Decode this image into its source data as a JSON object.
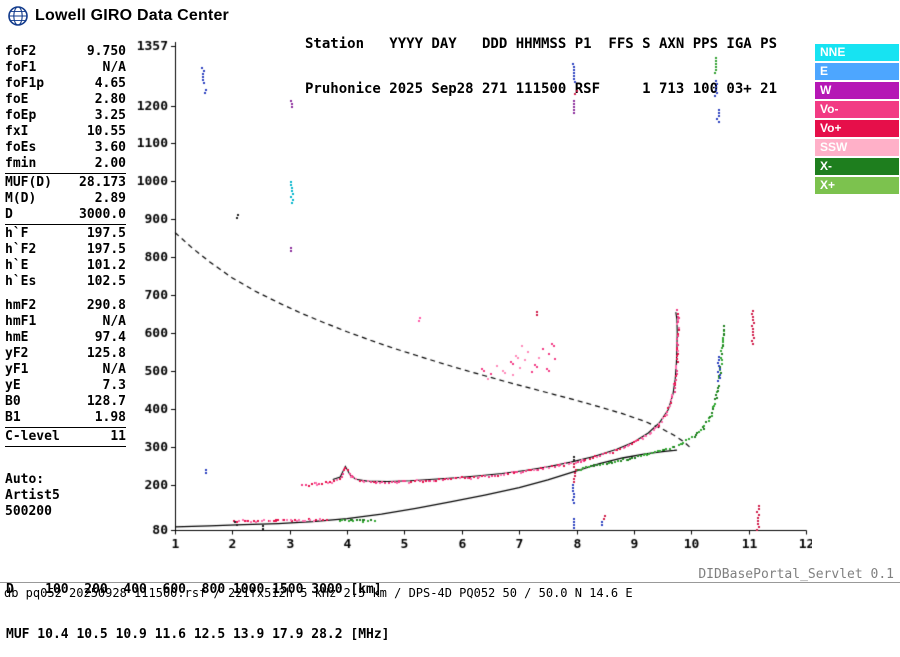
{
  "logo": {
    "text": "Lowell GIRO Data Center"
  },
  "header": {
    "line1": "Station   YYYY DAY   DDD HHMMSS P1  FFS S AXN PPS IGA PS",
    "line2": "Pruhonice 2025 Sep28 271 111500 RSF     1 713 100 03+ 21"
  },
  "params": {
    "rows": [
      {
        "n": "foF2",
        "v": "9.750"
      },
      {
        "n": "foF1",
        "v": "N/A"
      },
      {
        "n": "foF1p",
        "v": "4.65"
      },
      {
        "n": "foE",
        "v": "2.80"
      },
      {
        "n": "foEp",
        "v": "3.25"
      },
      {
        "n": "fxI",
        "v": "10.55"
      },
      {
        "n": "foEs",
        "v": "3.60"
      },
      {
        "n": "fmin",
        "v": "2.00"
      },
      {
        "hr": true
      },
      {
        "n": "MUF(D)",
        "v": "28.173"
      },
      {
        "n": "M(D)",
        "v": "2.89"
      },
      {
        "n": "D",
        "v": "3000.0"
      },
      {
        "hr": true
      },
      {
        "n": "h`F",
        "v": "197.5"
      },
      {
        "n": "h`F2",
        "v": "197.5"
      },
      {
        "n": "h`E",
        "v": "101.2"
      },
      {
        "n": "h`Es",
        "v": "102.5"
      },
      {
        "gap": "sm"
      },
      {
        "n": "hmF2",
        "v": "290.8"
      },
      {
        "n": "hmF1",
        "v": "N/A"
      },
      {
        "n": "hmE",
        "v": "97.4"
      },
      {
        "n": "yF2",
        "v": "125.8"
      },
      {
        "n": "yF1",
        "v": "N/A"
      },
      {
        "n": "yE",
        "v": "7.3"
      },
      {
        "n": "B0",
        "v": "128.7"
      },
      {
        "n": "B1",
        "v": "1.98"
      },
      {
        "hr": true
      },
      {
        "n": "C-level",
        "v": "11"
      },
      {
        "hr": true
      },
      {
        "gap": "lg"
      },
      {
        "n": "Auto:",
        "v": ""
      },
      {
        "n": "Artist5",
        "v": ""
      },
      {
        "n": "500200",
        "v": ""
      }
    ]
  },
  "legend": {
    "items": [
      {
        "label": "NNE",
        "color": "#17E3F2"
      },
      {
        "label": "E",
        "color": "#4DA6FF"
      },
      {
        "label": "W",
        "color": "#B517B5"
      },
      {
        "label": "Vo-",
        "color": "#F23B84"
      },
      {
        "label": "Vo+",
        "color": "#E60F4A"
      },
      {
        "label": "SSW",
        "color": "#FFB0C8"
      },
      {
        "label": "X-",
        "color": "#1E7E1E"
      },
      {
        "label": "X+",
        "color": "#7CC24E"
      }
    ]
  },
  "footer": {
    "d_row": "D    100  200  400  600  800 1000 1500 3000 [km]",
    "muf_row": "MUF 10.4 10.5 10.9 11.6 12.5 13.9 17.9 28.2 [MHz]",
    "servlet": "DIDBasePortal_Servlet 0.1",
    "status": "db pq052 20250928 111500.rsf / 221fx512h 5 kHz 2.5 km / DPS-4D PQ052 50 / 50.0 N 14.6 E"
  },
  "chart_data": {
    "type": "scatter",
    "description": "Digisonde ionogram: virtual height (km) vs sounding frequency (MHz)",
    "x_axis": {
      "label": "[MHz]",
      "min": 1,
      "max": 12,
      "ticks": [
        1,
        2,
        3,
        4,
        5,
        6,
        7,
        8,
        9,
        10,
        11,
        12
      ]
    },
    "y_axis": {
      "label": "[km]",
      "min": 80,
      "max": 1357,
      "ticks": [
        1357,
        1200,
        1100,
        1000,
        900,
        800,
        700,
        600,
        500,
        400,
        300,
        200,
        80
      ]
    },
    "muf_table": {
      "D_km": [
        100,
        200,
        400,
        600,
        800,
        1000,
        1500,
        3000
      ],
      "MUF_MHz": [
        10.4,
        10.5,
        10.9,
        11.6,
        12.5,
        13.9,
        17.9,
        28.2
      ]
    },
    "traces": [
      {
        "name": "transmission-curve-D3000",
        "style": "dashed",
        "color": "#000000",
        "width": 1.2,
        "points": [
          [
            1.0,
            865
          ],
          [
            1.3,
            824
          ],
          [
            1.6,
            788
          ],
          [
            2.0,
            745
          ],
          [
            2.4,
            710
          ],
          [
            2.8,
            680
          ],
          [
            3.2,
            652
          ],
          [
            3.6,
            627
          ],
          [
            4.0,
            603
          ],
          [
            4.4,
            581
          ],
          [
            4.8,
            560
          ],
          [
            5.2,
            541
          ],
          [
            5.6,
            522
          ],
          [
            6.0,
            504
          ],
          [
            6.4,
            487
          ],
          [
            6.8,
            470
          ],
          [
            7.2,
            454
          ],
          [
            7.6,
            438
          ],
          [
            8.0,
            422
          ],
          [
            8.4,
            405
          ],
          [
            8.8,
            387
          ],
          [
            9.2,
            366
          ],
          [
            9.5,
            346
          ],
          [
            9.7,
            330
          ],
          [
            9.85,
            315
          ],
          [
            9.95,
            302
          ],
          [
            10.0,
            295
          ]
        ]
      },
      {
        "name": "true-height-profile",
        "style": "solid",
        "color": "#000000",
        "width": 1.3,
        "points": [
          [
            1.0,
            88
          ],
          [
            1.6,
            91
          ],
          [
            2.2,
            94
          ],
          [
            2.8,
            97
          ],
          [
            3.4,
            102
          ],
          [
            4.0,
            110
          ],
          [
            4.6,
            122
          ],
          [
            5.2,
            137
          ],
          [
            5.8,
            154
          ],
          [
            6.4,
            172
          ],
          [
            7.0,
            192
          ],
          [
            7.5,
            212
          ],
          [
            8.0,
            236
          ],
          [
            8.4,
            255
          ],
          [
            8.8,
            270
          ],
          [
            9.2,
            281
          ],
          [
            9.5,
            287
          ],
          [
            9.7,
            290
          ],
          [
            9.75,
            291
          ]
        ]
      },
      {
        "name": "fitted-o-trace",
        "style": "solid",
        "color": "#000000",
        "width": 1.1,
        "points": [
          [
            3.75,
            213
          ],
          [
            3.88,
            220
          ],
          [
            3.97,
            248
          ],
          [
            4.05,
            226
          ],
          [
            4.15,
            214
          ],
          [
            4.35,
            209
          ],
          [
            4.7,
            208
          ],
          [
            5.1,
            210
          ],
          [
            5.5,
            214
          ],
          [
            5.9,
            218
          ],
          [
            6.3,
            223
          ],
          [
            6.7,
            229
          ],
          [
            7.1,
            237
          ],
          [
            7.5,
            247
          ],
          [
            7.9,
            259
          ],
          [
            8.3,
            274
          ],
          [
            8.7,
            293
          ],
          [
            9.0,
            312
          ],
          [
            9.25,
            336
          ],
          [
            9.45,
            364
          ],
          [
            9.6,
            398
          ],
          [
            9.68,
            438
          ],
          [
            9.72,
            478
          ],
          [
            9.74,
            520
          ],
          [
            9.75,
            560
          ],
          [
            9.755,
            600
          ],
          [
            9.75,
            635
          ],
          [
            9.73,
            655
          ]
        ]
      },
      {
        "name": "o-mode-f-trace",
        "style": "dots",
        "colors": [
          "#E60F4A",
          "#F23B84",
          "#FF6FAE"
        ],
        "points": [
          [
            3.2,
            201
          ],
          [
            3.45,
            204
          ],
          [
            3.7,
            208
          ],
          [
            3.85,
            216
          ],
          [
            3.95,
            246
          ],
          [
            4.05,
            224
          ],
          [
            4.2,
            211
          ],
          [
            4.5,
            208
          ],
          [
            4.9,
            209
          ],
          [
            5.3,
            212
          ],
          [
            5.7,
            216
          ],
          [
            6.1,
            220
          ],
          [
            6.5,
            226
          ],
          [
            6.9,
            233
          ],
          [
            7.3,
            242
          ],
          [
            7.7,
            253
          ],
          [
            8.1,
            266
          ],
          [
            8.5,
            283
          ],
          [
            8.9,
            305
          ],
          [
            9.2,
            330
          ],
          [
            9.4,
            356
          ],
          [
            9.55,
            388
          ],
          [
            9.64,
            424
          ],
          [
            9.7,
            466
          ],
          [
            9.73,
            510
          ],
          [
            9.745,
            556
          ],
          [
            9.75,
            600
          ],
          [
            9.755,
            640
          ],
          [
            9.75,
            660
          ]
        ]
      },
      {
        "name": "x-mode-f-trace",
        "style": "dots",
        "colors": [
          "#1E7E1E",
          "#33A833"
        ],
        "points": [
          [
            8.0,
            242
          ],
          [
            8.3,
            251
          ],
          [
            8.6,
            260
          ],
          [
            8.9,
            270
          ],
          [
            9.2,
            281
          ],
          [
            9.5,
            294
          ],
          [
            9.8,
            310
          ],
          [
            10.05,
            330
          ],
          [
            10.2,
            352
          ],
          [
            10.3,
            378
          ],
          [
            10.38,
            410
          ],
          [
            10.44,
            448
          ],
          [
            10.48,
            490
          ],
          [
            10.51,
            530
          ],
          [
            10.53,
            570
          ],
          [
            10.545,
            600
          ],
          [
            10.55,
            620
          ]
        ]
      },
      {
        "name": "es-o-trace",
        "style": "dots",
        "colors": [
          "#E60F4A",
          "#FF6FAE"
        ],
        "points": [
          [
            2.0,
            105
          ],
          [
            2.25,
            106
          ],
          [
            2.5,
            106
          ],
          [
            2.75,
            107
          ],
          [
            3.0,
            108
          ],
          [
            3.25,
            109
          ],
          [
            3.5,
            110
          ],
          [
            3.62,
            110
          ]
        ]
      },
      {
        "name": "es-x-trace",
        "style": "dots",
        "colors": [
          "#1E7E1E",
          "#33A833"
        ],
        "points": [
          [
            3.85,
            106
          ],
          [
            4.05,
            107
          ],
          [
            4.25,
            107
          ],
          [
            4.45,
            108
          ]
        ]
      }
    ],
    "scatter": {
      "name": "spread-f-echoes",
      "colors": [
        "#F23B84",
        "#FF8AB8"
      ],
      "points": [
        [
          6.35,
          505
        ],
        [
          6.45,
          478
        ],
        [
          6.5,
          492
        ],
        [
          6.62,
          514
        ],
        [
          6.72,
          500
        ],
        [
          6.85,
          522
        ],
        [
          6.9,
          488
        ],
        [
          6.95,
          540
        ],
        [
          7.02,
          508
        ],
        [
          7.05,
          565
        ],
        [
          7.1,
          528
        ],
        [
          7.15,
          550
        ],
        [
          7.22,
          498
        ],
        [
          7.28,
          515
        ],
        [
          7.35,
          535
        ],
        [
          7.42,
          558
        ],
        [
          7.48,
          505
        ],
        [
          7.52,
          545
        ],
        [
          7.58,
          570
        ],
        [
          7.62,
          532
        ]
      ]
    },
    "noise": [
      {
        "f": 1.47,
        "h1": 1262,
        "h2": 1302,
        "c": "#2A3FBF"
      },
      {
        "f": 1.5,
        "h1": 1232,
        "h2": 1244,
        "c": "#2A3FBF"
      },
      {
        "f": 1.52,
        "h1": 234,
        "h2": 242,
        "c": "#2A3FBF"
      },
      {
        "f": 2.07,
        "h1": 905,
        "h2": 914,
        "c": "#222222"
      },
      {
        "f": 3.03,
        "h1": 938,
        "h2": 1000,
        "c": "#00B4CC"
      },
      {
        "f": 3.02,
        "h1": 1196,
        "h2": 1214,
        "c": "#8A2A9A"
      },
      {
        "f": 3.0,
        "h1": 818,
        "h2": 826,
        "c": "#8A2A9A"
      },
      {
        "f": 7.93,
        "h1": 1262,
        "h2": 1312,
        "c": "#2A3FBF"
      },
      {
        "f": 7.93,
        "h1": 1178,
        "h2": 1214,
        "c": "#8A2A9A"
      },
      {
        "f": 7.97,
        "h1": 1232,
        "h2": 1240,
        "c": "#D01C4A"
      },
      {
        "f": 7.93,
        "h1": 148,
        "h2": 202,
        "c": "#2A3FBF"
      },
      {
        "f": 7.95,
        "h1": 206,
        "h2": 258,
        "c": "#D01C4A"
      },
      {
        "f": 7.93,
        "h1": 262,
        "h2": 276,
        "c": "#222222"
      },
      {
        "f": 7.94,
        "h1": 86,
        "h2": 112,
        "c": "#2A3FBF"
      },
      {
        "f": 8.43,
        "h1": 95,
        "h2": 104,
        "c": "#2A3FBF"
      },
      {
        "f": 8.46,
        "h1": 112,
        "h2": 120,
        "c": "#D01C4A"
      },
      {
        "f": 10.42,
        "h1": 1286,
        "h2": 1328,
        "c": "#2F9F2F"
      },
      {
        "f": 10.42,
        "h1": 1220,
        "h2": 1266,
        "c": "#2A3FBF"
      },
      {
        "f": 10.44,
        "h1": 1156,
        "h2": 1190,
        "c": "#2A3FBF"
      },
      {
        "f": 10.46,
        "h1": 476,
        "h2": 540,
        "c": "#2A3FBF"
      },
      {
        "f": 11.05,
        "h1": 568,
        "h2": 660,
        "c": "#D01C4A"
      },
      {
        "f": 11.15,
        "h1": 82,
        "h2": 146,
        "c": "#D01C4A"
      },
      {
        "f": 5.25,
        "h1": 634,
        "h2": 642,
        "c": "#FF59A8"
      },
      {
        "f": 7.3,
        "h1": 650,
        "h2": 658,
        "c": "#D01C4A"
      },
      {
        "f": 2.05,
        "h1": 90,
        "h2": 104,
        "c": "#222222"
      },
      {
        "f": 2.5,
        "h1": 86,
        "h2": 94,
        "c": "#222222"
      }
    ]
  }
}
